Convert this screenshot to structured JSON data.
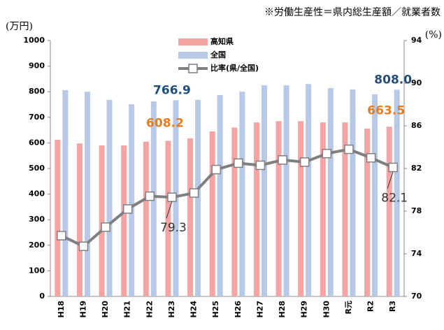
{
  "chart_data": {
    "type": "bar",
    "title": "※労働生産性＝県内総生産額／就業者数",
    "y_label": "(万円)",
    "y2_label": "(%)",
    "categories": [
      "H18",
      "H19",
      "H20",
      "H21",
      "H22",
      "H23",
      "H24",
      "H25",
      "H26",
      "H27",
      "H28",
      "H29",
      "H30",
      "R元",
      "R2",
      "R3"
    ],
    "series": [
      {
        "name": "高知県",
        "type": "bar",
        "color": "#f5a3a3",
        "label_color": "#e97c20",
        "values": [
          612,
          598,
          590,
          590,
          605,
          608.2,
          618,
          645,
          660,
          680,
          685,
          685,
          680,
          680,
          656,
          663.5
        ],
        "value_labels": [
          null,
          null,
          null,
          null,
          null,
          "608.2",
          null,
          null,
          null,
          null,
          null,
          null,
          null,
          null,
          null,
          "663.5"
        ]
      },
      {
        "name": "全国",
        "type": "bar",
        "color": "#b7c9e6",
        "label_color": "#1f4e79",
        "values": [
          806,
          800,
          768,
          751,
          762,
          766.9,
          768,
          787,
          800,
          825,
          825,
          830,
          814,
          809,
          790,
          808
        ],
        "value_labels": [
          null,
          null,
          null,
          null,
          null,
          "766.9",
          null,
          null,
          null,
          null,
          null,
          null,
          null,
          null,
          null,
          "808.0"
        ]
      },
      {
        "name": "比率(県/全国)",
        "type": "line",
        "axis": "y2",
        "color": "#7f7f7f",
        "label_color": "#333333",
        "values": [
          75.7,
          74.7,
          76.5,
          78.2,
          79.4,
          79.3,
          79.7,
          81.9,
          82.5,
          82.3,
          82.8,
          82.6,
          83.4,
          83.8,
          83.0,
          82.1
        ],
        "value_labels": [
          null,
          null,
          null,
          null,
          null,
          "79.3",
          null,
          null,
          null,
          null,
          null,
          null,
          null,
          null,
          null,
          "82.1"
        ]
      }
    ],
    "ylim": [
      0,
      1000
    ],
    "yticks": [
      0,
      100,
      200,
      300,
      400,
      500,
      600,
      700,
      800,
      900,
      1000
    ],
    "y2lim": [
      70,
      94
    ],
    "y2ticks": [
      70,
      74,
      78,
      82,
      86,
      90,
      94
    ],
    "grid": false
  }
}
